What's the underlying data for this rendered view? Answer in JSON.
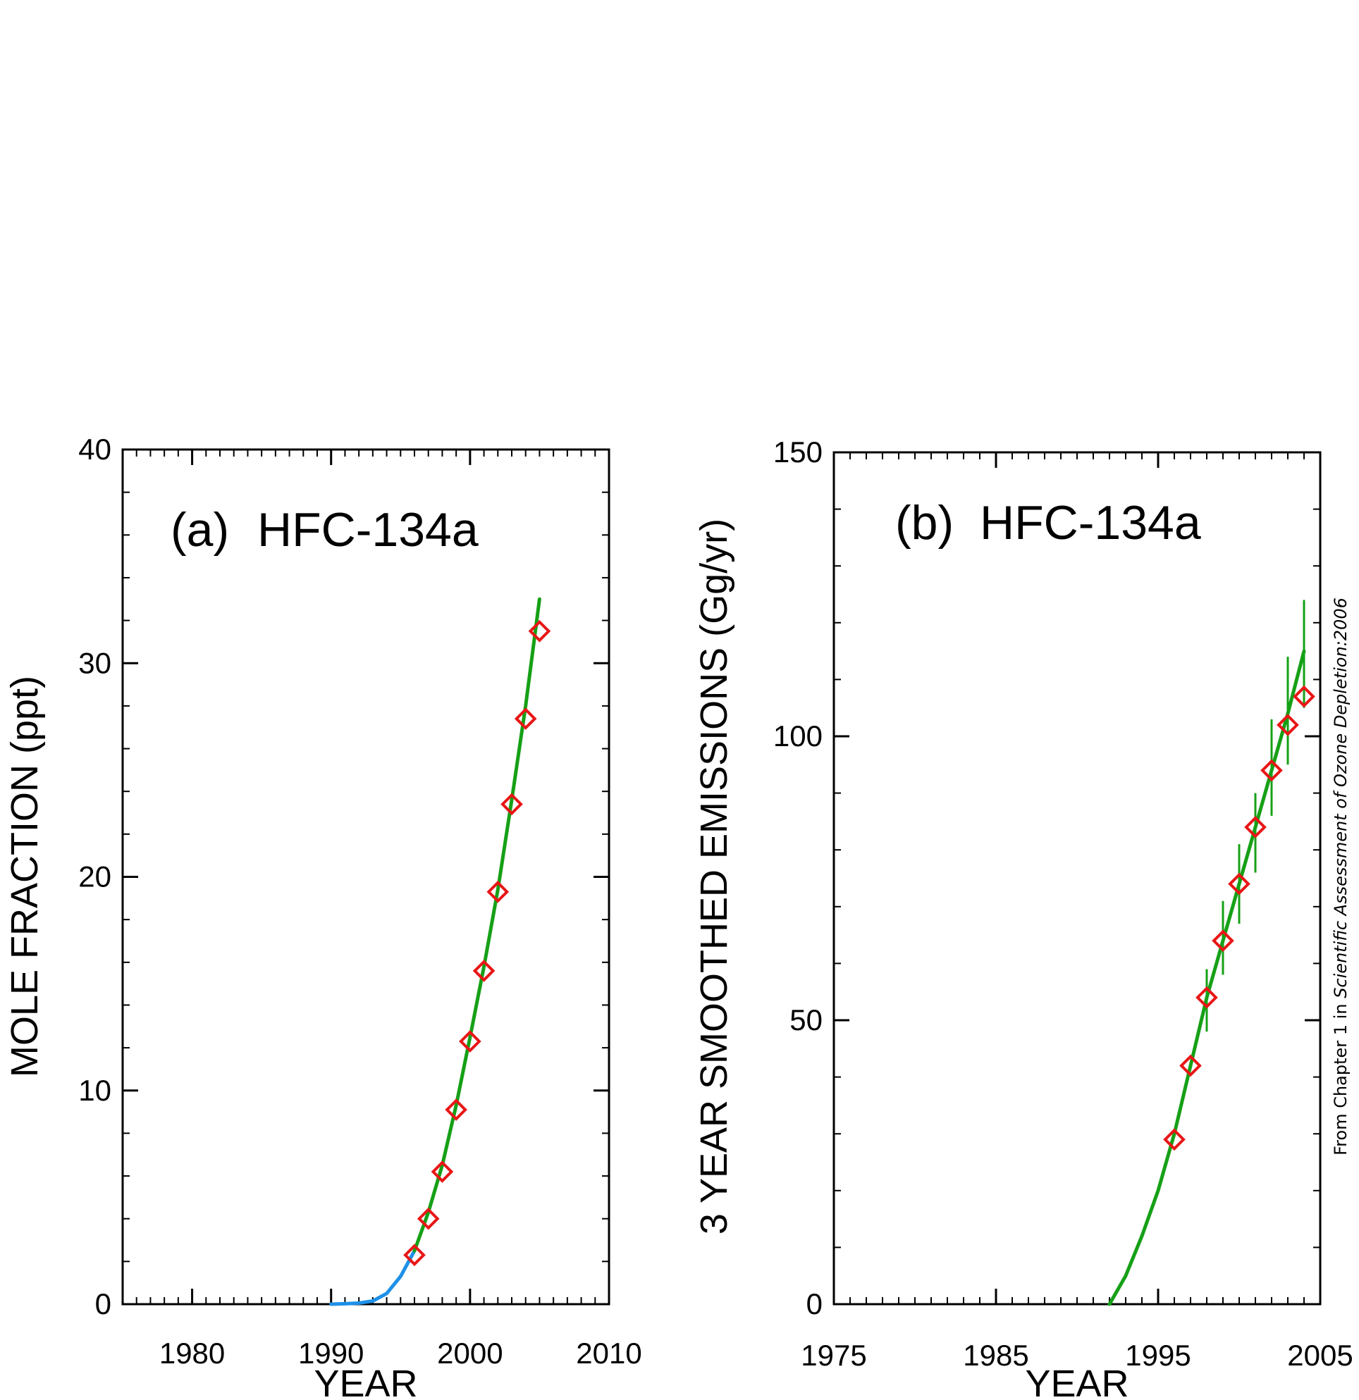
{
  "colors": {
    "fit_line": "#16a016",
    "early_line": "#1e90e8",
    "markers": "#e81616",
    "axis": "#000000"
  },
  "source_note": {
    "prefix": "From Chapter 1 in ",
    "italic": "Scientific Assessment of Ozone Depletion:2006"
  },
  "chart_data": [
    {
      "type": "line",
      "panel_label": "(a)",
      "title": "HFC-134a",
      "xlabel": "YEAR",
      "ylabel": "MOLE  FRACTION (ppt)",
      "xlim": [
        1975,
        2010
      ],
      "ylim": [
        0,
        40
      ],
      "xticks": [
        1980,
        1990,
        2000,
        2010
      ],
      "yticks": [
        0,
        10,
        20,
        30,
        40
      ],
      "x_minor_step": 1,
      "y_minor_step": 2,
      "grid": false,
      "series": [
        {
          "role": "early_line",
          "points": [
            [
              1990,
              0
            ],
            [
              1991,
              0.02
            ],
            [
              1992,
              0.05
            ],
            [
              1993,
              0.15
            ],
            [
              1994,
              0.5
            ],
            [
              1995,
              1.3
            ],
            [
              1996,
              2.5
            ]
          ]
        },
        {
          "role": "fit_line",
          "points": [
            [
              1996,
              2.5
            ],
            [
              1997,
              4.3
            ],
            [
              1998,
              6.5
            ],
            [
              1999,
              9.3
            ],
            [
              2000,
              12.5
            ],
            [
              2001,
              15.8
            ],
            [
              2002,
              19.4
            ],
            [
              2003,
              23.6
            ],
            [
              2004,
              28.0
            ],
            [
              2005,
              33.0
            ]
          ]
        },
        {
          "role": "markers",
          "points": [
            [
              1996,
              2.3
            ],
            [
              1997,
              4.0
            ],
            [
              1998,
              6.2
            ],
            [
              1999,
              9.1
            ],
            [
              2000,
              12.3
            ],
            [
              2001,
              15.6
            ],
            [
              2002,
              19.3
            ],
            [
              2003,
              23.4
            ],
            [
              2004,
              27.4
            ],
            [
              2005,
              31.5
            ]
          ]
        }
      ]
    },
    {
      "type": "line",
      "panel_label": "(b)",
      "title": "HFC-134a",
      "xlabel": "YEAR",
      "ylabel": "3 YEAR SMOOTHED EMISSIONS  (Gg/yr)",
      "xlim": [
        1975,
        2005
      ],
      "ylim": [
        0,
        150
      ],
      "xticks": [
        1975,
        1985,
        1995,
        2005
      ],
      "yticks": [
        0,
        50,
        100,
        150
      ],
      "x_minor_step": 1,
      "y_minor_step": 10,
      "grid": false,
      "series": [
        {
          "role": "fit_line",
          "points": [
            [
              1992,
              0
            ],
            [
              1993,
              5
            ],
            [
              1994,
              12
            ],
            [
              1995,
              20
            ],
            [
              1996,
              30
            ],
            [
              1997,
              42
            ],
            [
              1998,
              54
            ],
            [
              1999,
              64
            ],
            [
              2000,
              74
            ],
            [
              2001,
              84
            ],
            [
              2002,
              94
            ],
            [
              2003,
              104
            ],
            [
              2004,
              115
            ]
          ]
        },
        {
          "role": "error_bars",
          "bars": [
            [
              1998,
              48,
              59
            ],
            [
              1999,
              58,
              71
            ],
            [
              2000,
              67,
              81
            ],
            [
              2001,
              76,
              90
            ],
            [
              2002,
              86,
              103
            ],
            [
              2003,
              95,
              114
            ],
            [
              2004,
              105,
              124
            ]
          ]
        },
        {
          "role": "markers",
          "points": [
            [
              1996,
              29
            ],
            [
              1997,
              42
            ],
            [
              1998,
              54
            ],
            [
              1999,
              64
            ],
            [
              2000,
              74
            ],
            [
              2001,
              84
            ],
            [
              2002,
              94
            ],
            [
              2003,
              102
            ],
            [
              2004,
              107
            ]
          ]
        }
      ]
    }
  ]
}
